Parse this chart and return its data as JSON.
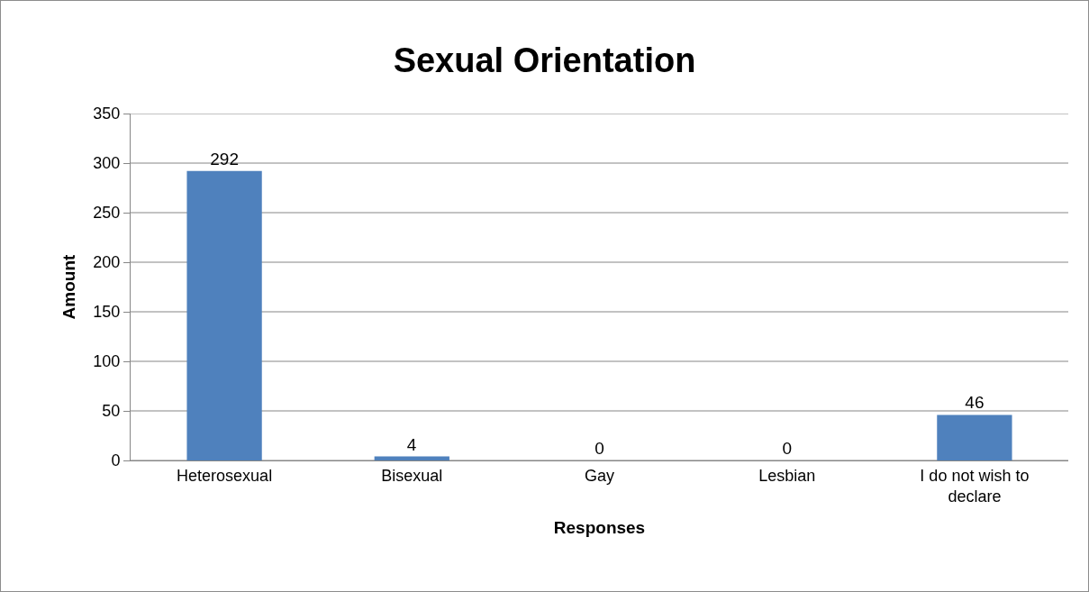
{
  "chart_data": {
    "type": "bar",
    "title": "Sexual Orientation",
    "xlabel": "Responses",
    "ylabel": "Amount",
    "categories": [
      "Heterosexual",
      "Bisexual",
      "Gay",
      "Lesbian",
      "I do not wish to declare"
    ],
    "values": [
      292,
      4,
      0,
      0,
      46
    ],
    "color": "#4f81bd",
    "ylim": [
      0,
      350
    ],
    "yticks": [
      0,
      50,
      100,
      150,
      200,
      250,
      300,
      350
    ],
    "grid": "y",
    "data_labels": true
  }
}
